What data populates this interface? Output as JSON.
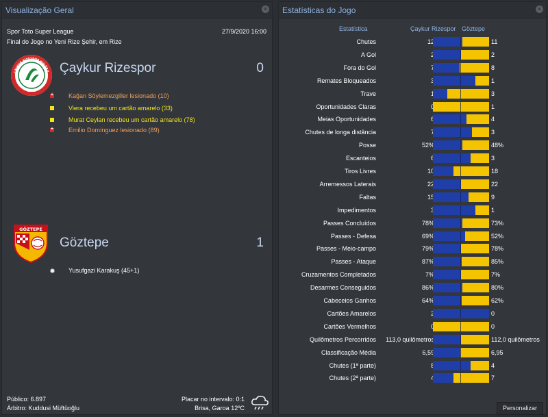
{
  "overview": {
    "title": "Visualização Geral",
    "league": "Spor Toto Super League",
    "date": "27/9/2020 16:00",
    "venue": "Final do Jogo no Yeni Rize Şehir, em Rize",
    "home": {
      "name": "Çaykur Rizespor",
      "score": "0",
      "crest_text": "ÇAYKUR RİZESPOR KULÜBÜ",
      "crest_year": "1953",
      "events": [
        {
          "type": "injury",
          "text": "Kağan Söylemezgiller lesionado (10)"
        },
        {
          "type": "yellow",
          "text": "Viera recebeu um cartão amarelo (33)"
        },
        {
          "type": "yellow",
          "text": "Murat Ceylan recebeu um cartão amarelo (78)"
        },
        {
          "type": "injury",
          "text": "Emilio Domínguez lesionado (89)"
        }
      ]
    },
    "away": {
      "name": "Göztepe",
      "score": "1",
      "crest_text": "GÖZTEPE",
      "events": [
        {
          "type": "goal",
          "text": "Yusufgazi Karakuş (45+1)"
        }
      ]
    },
    "footer": {
      "attendance": "Público: 6.897",
      "referee": "Árbitro: Kuddusi Müftüoğlu",
      "halftime": "Placar no intervalo: 0:1",
      "weather": "Brisa, Garoa 12ºC"
    },
    "weather_icon": "cloud-rain-icon"
  },
  "stats": {
    "title": "Estatísticas do Jogo",
    "col_stat": "Estatística",
    "col_home": "Çaykur Rizespor",
    "col_away": "Göztepe",
    "colors": {
      "home": "#1f3ea8",
      "away": "#f5c400"
    },
    "button_label": "Personalizar",
    "rows": [
      {
        "label": "Chutes",
        "home": "12",
        "away": "11",
        "share": 0.52
      },
      {
        "label": "A Gol",
        "home": "2",
        "away": "2",
        "share": 0.5
      },
      {
        "label": "Fora do Gol",
        "home": "7",
        "away": "8",
        "share": 0.47
      },
      {
        "label": "Remates Bloqueados",
        "home": "3",
        "away": "1",
        "share": 0.75
      },
      {
        "label": "Trave",
        "home": "1",
        "away": "3",
        "share": 0.25
      },
      {
        "label": "Oportunidades Claras",
        "home": "0",
        "away": "1",
        "share": 0.0
      },
      {
        "label": "Meias Oportunidades",
        "home": "6",
        "away": "4",
        "share": 0.6
      },
      {
        "label": "Chutes de longa distância",
        "home": "7",
        "away": "3",
        "share": 0.7
      },
      {
        "label": "Posse",
        "home": "52%",
        "away": "48%",
        "share": 0.52
      },
      {
        "label": "Escanteios",
        "home": "6",
        "away": "3",
        "share": 0.67
      },
      {
        "label": "Tiros Livres",
        "home": "10",
        "away": "18",
        "share": 0.36
      },
      {
        "label": "Arremessos Laterais",
        "home": "22",
        "away": "22",
        "share": 0.5
      },
      {
        "label": "Faltas",
        "home": "15",
        "away": "9",
        "share": 0.63
      },
      {
        "label": "Impedimentos",
        "home": "3",
        "away": "1",
        "share": 0.75
      },
      {
        "label": "Passes Concluídos",
        "home": "78%",
        "away": "73%",
        "share": 0.52
      },
      {
        "label": "Passes - Defesa",
        "home": "69%",
        "away": "52%",
        "share": 0.57
      },
      {
        "label": "Passes - Meio-campo",
        "home": "79%",
        "away": "78%",
        "share": 0.5
      },
      {
        "label": "Passes - Ataque",
        "home": "87%",
        "away": "85%",
        "share": 0.51
      },
      {
        "label": "Cruzamentos Completados",
        "home": "7%",
        "away": "7%",
        "share": 0.5
      },
      {
        "label": "Desarmes Conseguidos",
        "home": "86%",
        "away": "80%",
        "share": 0.52
      },
      {
        "label": "Cabeceios Ganhos",
        "home": "64%",
        "away": "62%",
        "share": 0.51
      },
      {
        "label": "Cartões Amarelos",
        "home": "2",
        "away": "0",
        "share": 1.0
      },
      {
        "label": "Cartões Vermelhos",
        "home": "0",
        "away": "0",
        "share": 0.0
      },
      {
        "label": "Quilômetros Percorridos",
        "home": "113,0 quilômetros",
        "away": "112,0 quilômetros",
        "share": 0.5
      },
      {
        "label": "Classificação Média",
        "home": "6,59",
        "away": "6,95",
        "share": 0.49
      },
      {
        "label": "Chutes (1ª parte)",
        "home": "8",
        "away": "4",
        "share": 0.67
      },
      {
        "label": "Chutes (2ª parte)",
        "home": "4",
        "away": "7",
        "share": 0.36
      }
    ]
  }
}
